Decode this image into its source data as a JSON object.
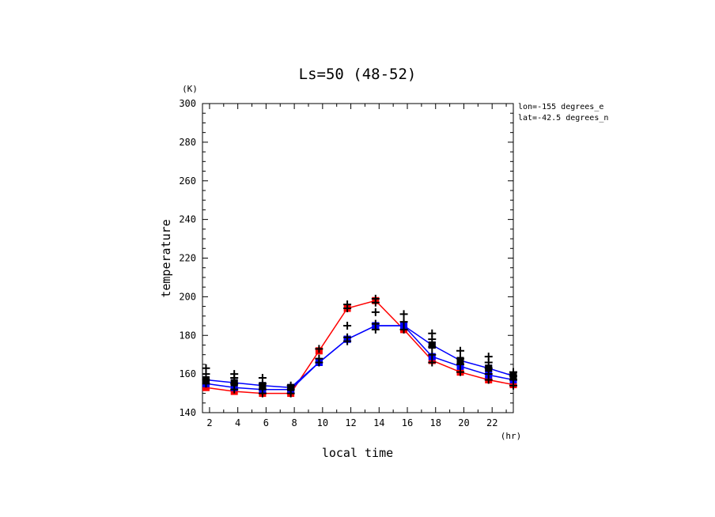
{
  "chart_data": {
    "type": "line",
    "title": "Ls=50 (48-52)",
    "xlabel": "local time",
    "ylabel": "temperature",
    "x_unit": "(hr)",
    "y_unit": "(K)",
    "annotations": [
      "lon=-155 degrees_e",
      "lat=-42.5 degrees_n"
    ],
    "xlim": [
      1.5,
      23.5
    ],
    "ylim": [
      140,
      300
    ],
    "x_ticks": [
      2,
      4,
      6,
      8,
      10,
      12,
      14,
      16,
      18,
      20,
      22
    ],
    "y_ticks": [
      140,
      160,
      180,
      200,
      220,
      240,
      260,
      280,
      300
    ],
    "x": [
      1.75,
      3.75,
      5.75,
      7.75,
      9.75,
      11.75,
      13.75,
      15.75,
      17.75,
      19.75,
      21.75,
      23.5
    ],
    "series": [
      {
        "color": "#ff0000",
        "marker": "square",
        "values": [
          153,
          151,
          150,
          150,
          172,
          194,
          198,
          183,
          167,
          161,
          157,
          154.5
        ]
      },
      {
        "color": "#0000ff",
        "marker": "square",
        "values": [
          155,
          153,
          152,
          152,
          166,
          178,
          185,
          185,
          169,
          164,
          159.5,
          157
        ]
      },
      {
        "color": "#0000ff",
        "marker": "square",
        "values": [
          157,
          155.5,
          154,
          153,
          166,
          178,
          185,
          185,
          175,
          167,
          163,
          159
        ]
      }
    ],
    "observations": {
      "marker": "+",
      "color": "#000000",
      "points": [
        [
          1.75,
          155
        ],
        [
          1.75,
          157
        ],
        [
          1.75,
          160
        ],
        [
          1.75,
          163
        ],
        [
          3.75,
          152
        ],
        [
          3.75,
          155
        ],
        [
          3.75,
          158
        ],
        [
          3.75,
          160
        ],
        [
          5.75,
          150
        ],
        [
          5.75,
          152
        ],
        [
          5.75,
          155
        ],
        [
          5.75,
          158
        ],
        [
          7.75,
          150
        ],
        [
          7.75,
          152
        ],
        [
          7.75,
          154
        ],
        [
          9.75,
          166
        ],
        [
          9.75,
          168
        ],
        [
          9.75,
          173
        ],
        [
          11.75,
          177
        ],
        [
          11.75,
          179
        ],
        [
          11.75,
          185
        ],
        [
          11.75,
          194
        ],
        [
          11.75,
          196
        ],
        [
          13.75,
          183
        ],
        [
          13.75,
          186
        ],
        [
          13.75,
          192
        ],
        [
          13.75,
          197
        ],
        [
          13.75,
          199
        ],
        [
          15.75,
          183
        ],
        [
          15.75,
          187
        ],
        [
          15.75,
          191
        ],
        [
          17.75,
          166
        ],
        [
          17.75,
          170
        ],
        [
          17.75,
          174
        ],
        [
          17.75,
          178
        ],
        [
          17.75,
          181
        ],
        [
          19.75,
          161
        ],
        [
          19.75,
          165
        ],
        [
          19.75,
          168
        ],
        [
          19.75,
          172
        ],
        [
          21.75,
          157
        ],
        [
          21.75,
          160
        ],
        [
          21.75,
          163
        ],
        [
          21.75,
          166
        ],
        [
          21.75,
          169
        ],
        [
          23.5,
          154
        ],
        [
          23.5,
          157
        ],
        [
          23.5,
          159
        ],
        [
          23.5,
          161
        ]
      ]
    },
    "grid": false,
    "legend": "none"
  }
}
